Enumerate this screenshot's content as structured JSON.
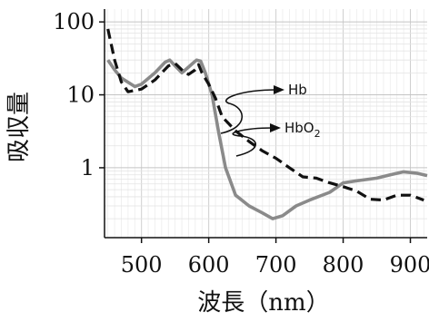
{
  "chart_data": {
    "type": "line",
    "title": "",
    "xlabel": "波長（nm）",
    "ylabel": "吸収量",
    "xlim": [
      445,
      925
    ],
    "ylim": [
      0.11,
      150
    ],
    "yscale": "log",
    "grid": true,
    "xticks": [
      500,
      600,
      700,
      800,
      900
    ],
    "xtick_labels": [
      "500",
      "600",
      "700",
      "800",
      "900"
    ],
    "yticks": [
      1,
      10,
      100
    ],
    "ytick_labels": [
      "1",
      "10",
      "100"
    ],
    "series": [
      {
        "name": "Hb",
        "color": "#111111",
        "style": "dashed",
        "points": [
          [
            450,
            80
          ],
          [
            460,
            30
          ],
          [
            470,
            15
          ],
          [
            480,
            11
          ],
          [
            500,
            12
          ],
          [
            520,
            16
          ],
          [
            540,
            25
          ],
          [
            550,
            27
          ],
          [
            560,
            22
          ],
          [
            570,
            19
          ],
          [
            580,
            22
          ],
          [
            585,
            26
          ],
          [
            590,
            20
          ],
          [
            600,
            14
          ],
          [
            610,
            9
          ],
          [
            620,
            5
          ],
          [
            640,
            3.2
          ],
          [
            660,
            2.3
          ],
          [
            680,
            1.7
          ],
          [
            700,
            1.35
          ],
          [
            720,
            1.0
          ],
          [
            740,
            0.75
          ],
          [
            760,
            0.72
          ],
          [
            780,
            0.62
          ],
          [
            800,
            0.55
          ],
          [
            820,
            0.48
          ],
          [
            840,
            0.37
          ],
          [
            860,
            0.36
          ],
          [
            880,
            0.42
          ],
          [
            900,
            0.42
          ],
          [
            920,
            0.36
          ]
        ]
      },
      {
        "name": "HbO2",
        "color": "#8a8a8a",
        "style": "solid",
        "points": [
          [
            450,
            30
          ],
          [
            460,
            22
          ],
          [
            470,
            17
          ],
          [
            490,
            13
          ],
          [
            500,
            14
          ],
          [
            520,
            20
          ],
          [
            535,
            28
          ],
          [
            542,
            30
          ],
          [
            550,
            25
          ],
          [
            560,
            20
          ],
          [
            570,
            24
          ],
          [
            578,
            28
          ],
          [
            582,
            30
          ],
          [
            588,
            29
          ],
          [
            595,
            20
          ],
          [
            605,
            10
          ],
          [
            615,
            3
          ],
          [
            625,
            1.0
          ],
          [
            640,
            0.42
          ],
          [
            660,
            0.3
          ],
          [
            680,
            0.24
          ],
          [
            695,
            0.2
          ],
          [
            710,
            0.22
          ],
          [
            730,
            0.3
          ],
          [
            750,
            0.36
          ],
          [
            780,
            0.46
          ],
          [
            800,
            0.62
          ],
          [
            820,
            0.66
          ],
          [
            850,
            0.72
          ],
          [
            870,
            0.8
          ],
          [
            890,
            0.88
          ],
          [
            910,
            0.84
          ],
          [
            925,
            0.78
          ]
        ]
      }
    ],
    "annotations": [
      {
        "label": "Hb",
        "series": "Hb"
      },
      {
        "label_main": "HbO",
        "label_sub": "2",
        "series": "HbO2"
      }
    ]
  }
}
